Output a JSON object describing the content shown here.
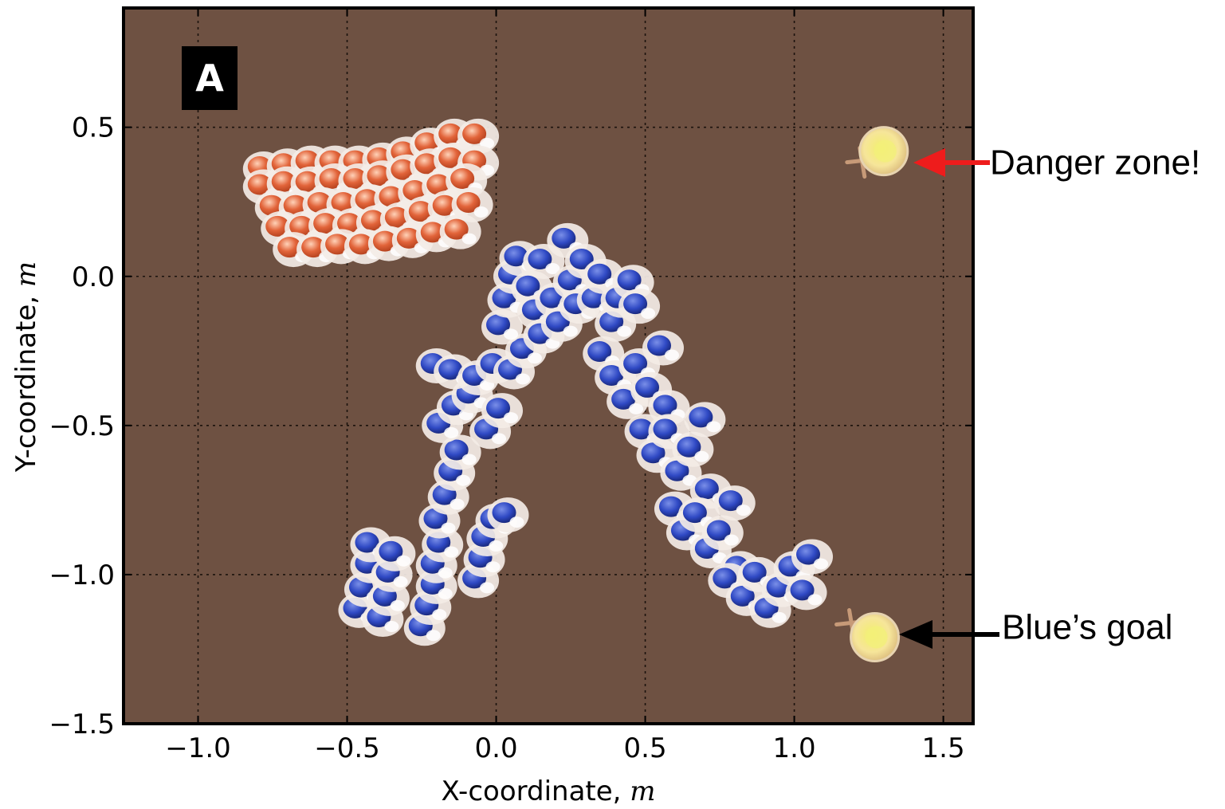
{
  "chart_data": {
    "type": "scatter",
    "panel_label": "A",
    "xlabel": "X-coordinate, m",
    "ylabel": "Y-coordinate, m",
    "xlim": [
      -1.25,
      1.6
    ],
    "ylim": [
      -1.5,
      0.9
    ],
    "xticks": [
      -1.0,
      -0.5,
      0.0,
      0.5,
      1.0,
      1.5
    ],
    "xtick_labels": [
      "−1.0",
      "−0.5",
      "0.0",
      "0.5",
      "1.0",
      "1.5"
    ],
    "yticks": [
      0.5,
      0.0,
      -0.5,
      -1.0,
      -1.5
    ],
    "ytick_labels": [
      "0.5",
      "0.0",
      "−0.5",
      "−1.0",
      "−1.5"
    ],
    "grid": true,
    "colors": {
      "background": "#6e5142",
      "red_robot": "#e2643a",
      "blue_robot": "#2f49c4",
      "robot_body": "#f3ece6",
      "goal": "#f6e59a",
      "danger_arrow": "#ee1c1c",
      "goal_arrow": "#000000"
    },
    "series": [
      {
        "points": [
          [
            -0.78,
            0.36
          ],
          [
            -0.7,
            0.37
          ],
          [
            -0.62,
            0.38
          ],
          [
            -0.54,
            0.38
          ],
          [
            -0.46,
            0.38
          ],
          [
            -0.38,
            0.39
          ],
          [
            -0.3,
            0.41
          ],
          [
            -0.22,
            0.44
          ],
          [
            -0.14,
            0.47
          ],
          [
            -0.06,
            0.47
          ],
          [
            -0.78,
            0.3
          ],
          [
            -0.7,
            0.31
          ],
          [
            -0.62,
            0.31
          ],
          [
            -0.54,
            0.32
          ],
          [
            -0.46,
            0.32
          ],
          [
            -0.38,
            0.33
          ],
          [
            -0.3,
            0.35
          ],
          [
            -0.22,
            0.37
          ],
          [
            -0.14,
            0.39
          ],
          [
            -0.06,
            0.38
          ],
          [
            -0.74,
            0.23
          ],
          [
            -0.66,
            0.23
          ],
          [
            -0.58,
            0.24
          ],
          [
            -0.5,
            0.24
          ],
          [
            -0.42,
            0.25
          ],
          [
            -0.34,
            0.26
          ],
          [
            -0.26,
            0.28
          ],
          [
            -0.18,
            0.3
          ],
          [
            -0.1,
            0.32
          ],
          [
            -0.72,
            0.16
          ],
          [
            -0.64,
            0.16
          ],
          [
            -0.56,
            0.17
          ],
          [
            -0.48,
            0.17
          ],
          [
            -0.4,
            0.18
          ],
          [
            -0.32,
            0.19
          ],
          [
            -0.24,
            0.21
          ],
          [
            -0.16,
            0.23
          ],
          [
            -0.08,
            0.24
          ],
          [
            -0.68,
            0.09
          ],
          [
            -0.6,
            0.09
          ],
          [
            -0.52,
            0.1
          ],
          [
            -0.44,
            0.1
          ],
          [
            -0.36,
            0.11
          ],
          [
            -0.28,
            0.12
          ],
          [
            -0.2,
            0.14
          ],
          [
            -0.12,
            0.15
          ]
        ]
      },
      {
        "points": [
          [
            -0.46,
            -1.12
          ],
          [
            -0.44,
            -1.05
          ],
          [
            -0.42,
            -0.97
          ],
          [
            -0.42,
            -0.9
          ],
          [
            -0.38,
            -1.15
          ],
          [
            -0.36,
            -1.08
          ],
          [
            -0.35,
            -1.0
          ],
          [
            -0.34,
            -0.93
          ],
          [
            -0.24,
            -1.18
          ],
          [
            -0.22,
            -1.11
          ],
          [
            -0.2,
            -1.04
          ],
          [
            -0.2,
            -0.97
          ],
          [
            -0.18,
            -0.9
          ],
          [
            -0.19,
            -0.82
          ],
          [
            -0.16,
            -0.74
          ],
          [
            -0.14,
            -0.66
          ],
          [
            -0.12,
            -0.59
          ],
          [
            -0.06,
            -1.02
          ],
          [
            -0.04,
            -0.95
          ],
          [
            -0.03,
            -0.88
          ],
          [
            0.0,
            -0.82
          ],
          [
            0.04,
            -0.8
          ],
          [
            -0.18,
            -0.5
          ],
          [
            -0.13,
            -0.44
          ],
          [
            -0.08,
            -0.4
          ],
          [
            -0.02,
            -0.52
          ],
          [
            0.02,
            -0.45
          ],
          [
            -0.2,
            -0.3
          ],
          [
            -0.14,
            -0.32
          ],
          [
            -0.06,
            -0.34
          ],
          [
            0.0,
            -0.3
          ],
          [
            0.06,
            -0.32
          ],
          [
            0.1,
            -0.25
          ],
          [
            0.02,
            -0.17
          ],
          [
            0.04,
            -0.08
          ],
          [
            0.06,
            0.0
          ],
          [
            0.08,
            0.06
          ],
          [
            0.12,
            -0.04
          ],
          [
            0.14,
            -0.12
          ],
          [
            0.16,
            -0.2
          ],
          [
            0.16,
            0.05
          ],
          [
            0.2,
            -0.08
          ],
          [
            0.22,
            -0.16
          ],
          [
            0.24,
            0.12
          ],
          [
            0.26,
            -0.02
          ],
          [
            0.28,
            -0.1
          ],
          [
            0.3,
            0.05
          ],
          [
            0.34,
            -0.08
          ],
          [
            0.36,
            0.0
          ],
          [
            0.4,
            -0.16
          ],
          [
            0.42,
            -0.08
          ],
          [
            0.46,
            -0.02
          ],
          [
            0.48,
            -0.1
          ],
          [
            0.36,
            -0.26
          ],
          [
            0.4,
            -0.34
          ],
          [
            0.44,
            -0.42
          ],
          [
            0.48,
            -0.3
          ],
          [
            0.52,
            -0.38
          ],
          [
            0.56,
            -0.24
          ],
          [
            0.58,
            -0.44
          ],
          [
            0.5,
            -0.52
          ],
          [
            0.54,
            -0.6
          ],
          [
            0.58,
            -0.52
          ],
          [
            0.62,
            -0.66
          ],
          [
            0.66,
            -0.58
          ],
          [
            0.7,
            -0.48
          ],
          [
            0.72,
            -0.72
          ],
          [
            0.6,
            -0.78
          ],
          [
            0.64,
            -0.86
          ],
          [
            0.68,
            -0.8
          ],
          [
            0.72,
            -0.92
          ],
          [
            0.76,
            -0.86
          ],
          [
            0.8,
            -0.76
          ],
          [
            0.82,
            -0.98
          ],
          [
            0.78,
            -1.02
          ],
          [
            0.84,
            -1.08
          ],
          [
            0.88,
            -1.0
          ],
          [
            0.92,
            -1.12
          ],
          [
            0.96,
            -1.05
          ],
          [
            1.0,
            -0.98
          ],
          [
            1.04,
            -1.06
          ],
          [
            1.06,
            -0.94
          ]
        ]
      }
    ],
    "goals": [
      {
        "x": 1.3,
        "y": 0.42
      },
      {
        "x": 1.27,
        "y": -1.21
      }
    ],
    "annotations": [
      {
        "text": "Danger zone!",
        "target": "goal-0",
        "arrow": "red"
      },
      {
        "text": "Blue’s goal",
        "target": "goal-1",
        "arrow": "black"
      }
    ]
  }
}
